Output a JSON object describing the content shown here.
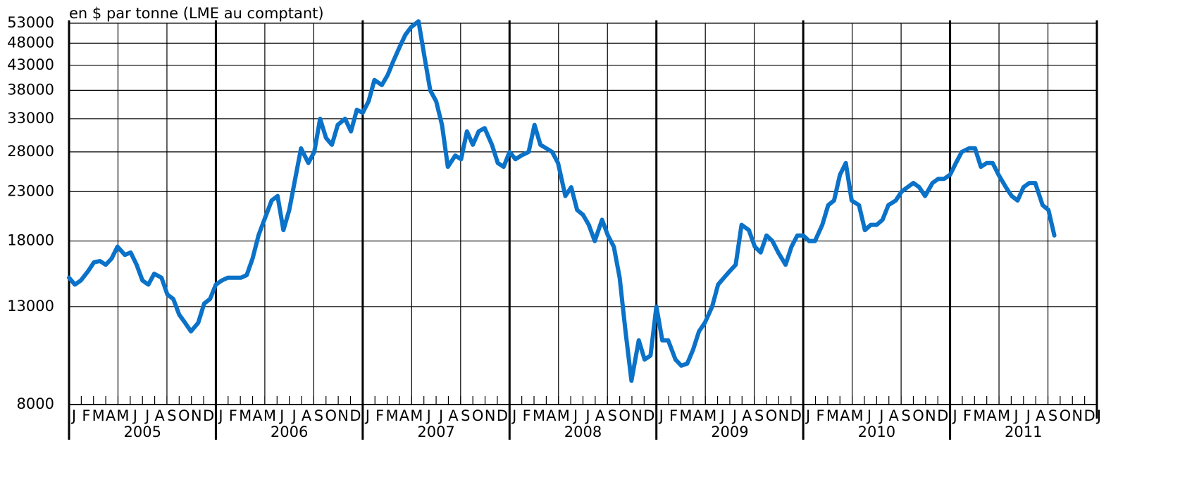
{
  "chart_data": {
    "type": "line",
    "title": "en $ par tonne (LME au comptant)",
    "log_y": true,
    "grid": true,
    "color": "#0a72c8",
    "ylim": [
      8000,
      53000
    ],
    "yticks": [
      8000,
      13000,
      18000,
      23000,
      28000,
      33000,
      38000,
      43000,
      48000,
      53000
    ],
    "xlim": [
      2005,
      2012
    ],
    "xticks": [
      2005,
      2006,
      2007,
      2008,
      2009,
      2010,
      2011,
      2012
    ],
    "years": [
      "2005",
      "2006",
      "2007",
      "2008",
      "2009",
      "2010",
      "2011"
    ],
    "months": [
      "J",
      "F",
      "M",
      "A",
      "M",
      "J",
      "J",
      "A",
      "S",
      "O",
      "N",
      "D"
    ],
    "x": [
      2005.0,
      2005.04,
      2005.08,
      2005.13,
      2005.17,
      2005.21,
      2005.25,
      2005.29,
      2005.33,
      2005.38,
      2005.42,
      2005.46,
      2005.5,
      2005.54,
      2005.58,
      2005.63,
      2005.67,
      2005.71,
      2005.75,
      2005.79,
      2005.83,
      2005.88,
      2005.92,
      2005.96,
      2006.0,
      2006.04,
      2006.08,
      2006.13,
      2006.17,
      2006.21,
      2006.25,
      2006.29,
      2006.33,
      2006.38,
      2006.42,
      2006.46,
      2006.5,
      2006.54,
      2006.58,
      2006.63,
      2006.67,
      2006.71,
      2006.75,
      2006.79,
      2006.83,
      2006.88,
      2006.92,
      2006.96,
      2007.0,
      2007.04,
      2007.08,
      2007.13,
      2007.17,
      2007.21,
      2007.25,
      2007.29,
      2007.33,
      2007.38,
      2007.42,
      2007.46,
      2007.5,
      2007.54,
      2007.58,
      2007.63,
      2007.67,
      2007.71,
      2007.75,
      2007.79,
      2007.83,
      2007.88,
      2007.92,
      2007.96,
      2008.0,
      2008.04,
      2008.08,
      2008.13,
      2008.17,
      2008.21,
      2008.25,
      2008.29,
      2008.33,
      2008.38,
      2008.42,
      2008.46,
      2008.5,
      2008.54,
      2008.58,
      2008.63,
      2008.67,
      2008.71,
      2008.75,
      2008.79,
      2008.83,
      2008.88,
      2008.92,
      2008.96,
      2009.0,
      2009.04,
      2009.08,
      2009.13,
      2009.17,
      2009.21,
      2009.25,
      2009.29,
      2009.33,
      2009.38,
      2009.42,
      2009.46,
      2009.5,
      2009.54,
      2009.58,
      2009.63,
      2009.67,
      2009.71,
      2009.75,
      2009.79,
      2009.83,
      2009.88,
      2009.92,
      2009.96,
      2010.0,
      2010.04,
      2010.08,
      2010.13,
      2010.17,
      2010.21,
      2010.25,
      2010.29,
      2010.33,
      2010.38,
      2010.42,
      2010.46,
      2010.5,
      2010.54,
      2010.58,
      2010.63,
      2010.67,
      2010.71,
      2010.75,
      2010.79,
      2010.83,
      2010.88,
      2010.92,
      2010.96,
      2011.0,
      2011.04,
      2011.08,
      2011.13,
      2011.17,
      2011.21,
      2011.25,
      2011.29,
      2011.33,
      2011.38,
      2011.42,
      2011.46,
      2011.5,
      2011.54,
      2011.58,
      2011.63,
      2011.67,
      2011.71
    ],
    "values": [
      15000,
      14500,
      14800,
      15500,
      16200,
      16300,
      16000,
      16500,
      17500,
      16800,
      17000,
      16000,
      14800,
      14500,
      15300,
      15000,
      13800,
      13500,
      12500,
      12000,
      11500,
      12000,
      13200,
      13500,
      14500,
      14800,
      15000,
      15000,
      15000,
      15200,
      16500,
      18500,
      20000,
      22000,
      22500,
      19000,
      21000,
      24500,
      28500,
      26500,
      28000,
      33000,
      30000,
      29000,
      32000,
      33000,
      31000,
      34500,
      34000,
      36000,
      40000,
      39000,
      41000,
      44000,
      47000,
      50000,
      52000,
      53500,
      45000,
      38000,
      36000,
      32000,
      26000,
      27500,
      27000,
      31000,
      29000,
      31000,
      31500,
      29000,
      26500,
      26000,
      28000,
      27000,
      27500,
      28000,
      32000,
      29000,
      28500,
      28000,
      26500,
      22500,
      23500,
      21000,
      20500,
      19500,
      18000,
      20000,
      18500,
      17500,
      15000,
      11500,
      9000,
      11000,
      10000,
      10200,
      13000,
      11000,
      11000,
      10000,
      9700,
      9800,
      10500,
      11500,
      12000,
      13000,
      14500,
      15000,
      15500,
      16000,
      19500,
      19000,
      17500,
      17000,
      18500,
      18000,
      17000,
      16000,
      17500,
      18500,
      18500,
      18000,
      18000,
      19500,
      21500,
      22000,
      25000,
      26500,
      22000,
      21500,
      19000,
      19500,
      19500,
      20000,
      21500,
      22000,
      23000,
      23500,
      24000,
      23500,
      22500,
      24000,
      24500,
      24500,
      25000,
      26500,
      28000,
      28500,
      28500,
      26000,
      26500,
      26500,
      25000,
      23500,
      22500,
      22000,
      23500,
      24000,
      24000,
      21500,
      21000,
      18500
    ]
  }
}
